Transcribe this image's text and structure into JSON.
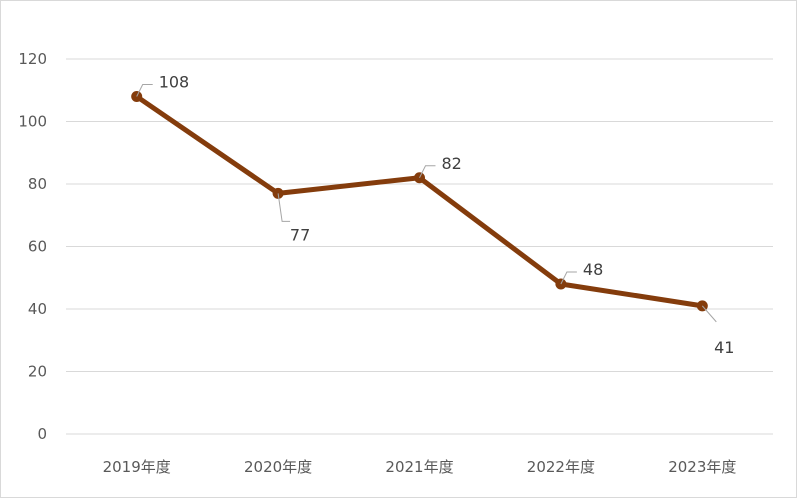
{
  "chart_data": {
    "type": "line",
    "title": "",
    "xlabel": "",
    "ylabel": "",
    "categories": [
      "2019年度",
      "2020年度",
      "2021年度",
      "2022年度",
      "2023年度"
    ],
    "series": [
      {
        "values": [
          108,
          77,
          82,
          48,
          41
        ],
        "color": "#843c0c"
      }
    ],
    "ylim": [
      0,
      120
    ],
    "yticks": [
      0,
      20,
      40,
      60,
      80,
      100,
      120
    ],
    "ytick_labels": [
      "0",
      "20",
      "40",
      "60",
      "80",
      "100",
      "120"
    ],
    "data_labels": [
      "108",
      "77",
      "82",
      "48",
      "41"
    ],
    "data_label_positions": [
      "above",
      "below",
      "above",
      "above",
      "below"
    ],
    "grid": true,
    "gridline_color": "#d9d9d9",
    "leader_line_color": "#a6a6a6",
    "legend": "none"
  }
}
